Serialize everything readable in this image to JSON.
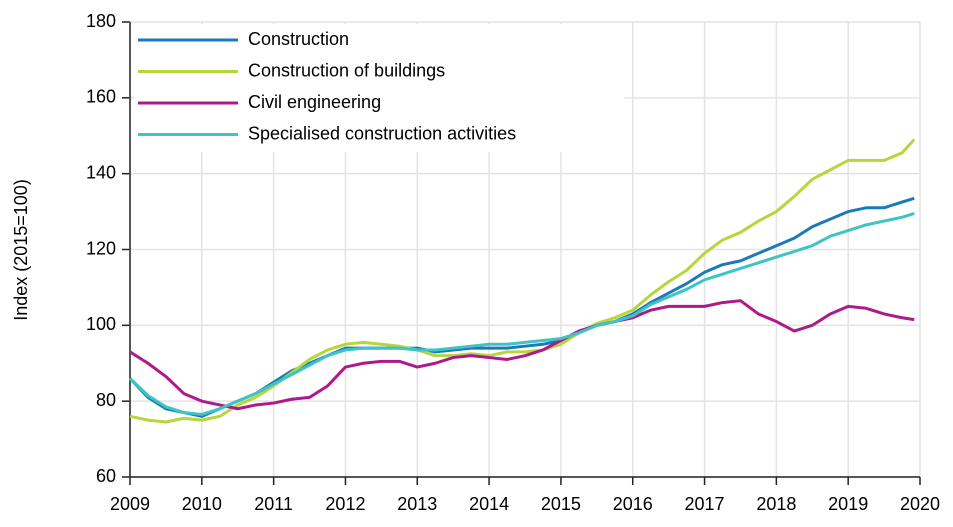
{
  "chart_data": {
    "type": "line",
    "y_label": "Index (2015=100)",
    "x": [
      2009,
      2009.25,
      2009.5,
      2009.75,
      2010,
      2010.25,
      2010.5,
      2010.75,
      2011,
      2011.25,
      2011.5,
      2011.75,
      2012,
      2012.25,
      2012.5,
      2012.75,
      2013,
      2013.25,
      2013.5,
      2013.75,
      2014,
      2014.25,
      2014.5,
      2014.75,
      2015,
      2015.25,
      2015.5,
      2015.75,
      2016,
      2016.25,
      2016.5,
      2016.75,
      2017,
      2017.25,
      2017.5,
      2017.75,
      2018,
      2018.25,
      2018.5,
      2018.75,
      2019,
      2019.25,
      2019.5,
      2019.75,
      2019.92
    ],
    "series": [
      {
        "name": "Construction",
        "color": "#1b7bb8",
        "values": [
          86,
          81,
          78,
          77,
          76,
          78,
          80,
          82,
          85,
          88,
          90,
          92,
          94,
          94,
          94,
          94,
          94,
          93,
          93.5,
          94,
          94,
          94,
          94.5,
          95,
          96,
          98,
          100,
          101,
          103,
          106,
          108.5,
          111,
          114,
          116,
          117,
          119,
          121,
          123,
          126,
          128,
          130,
          131,
          131,
          132.5,
          133.5
        ]
      },
      {
        "name": "Construction of buildings",
        "color": "#b6d63c",
        "values": [
          76,
          75,
          74.5,
          75.5,
          75,
          76,
          79,
          81,
          84,
          87.5,
          91,
          93.5,
          95,
          95.5,
          95,
          94.5,
          93.5,
          92,
          92,
          92.5,
          92,
          93,
          93,
          93.5,
          95,
          98,
          100.5,
          102,
          104,
          108,
          111.5,
          114.5,
          119,
          122.5,
          124.5,
          127.5,
          130,
          134,
          138.5,
          141,
          143.5,
          143.5,
          143.5,
          145.5,
          149
        ]
      },
      {
        "name": "Civil engineering",
        "color": "#ad1a8c",
        "values": [
          93,
          90,
          86.5,
          82,
          80,
          79,
          78,
          79,
          79.5,
          80.5,
          81,
          84,
          89,
          90,
          90.5,
          90.5,
          89,
          90,
          91.5,
          92,
          91.5,
          91,
          92,
          93.5,
          96,
          98.5,
          100,
          101,
          102,
          104,
          105,
          105,
          105,
          106,
          106.5,
          103,
          101,
          98.5,
          100,
          103,
          105,
          104.5,
          103,
          102,
          101.5
        ]
      },
      {
        "name": "Specialised construction activities",
        "color": "#3ec4c4",
        "values": [
          86,
          81.5,
          78.5,
          77,
          76.5,
          78,
          80,
          82,
          84.5,
          87,
          89.5,
          92,
          93.5,
          94,
          94,
          94,
          93.5,
          93.5,
          94,
          94.5,
          95,
          95,
          95.5,
          96,
          96.5,
          98,
          100,
          101,
          102.5,
          105.5,
          107.5,
          109.5,
          112,
          113.5,
          115,
          116.5,
          118,
          119.5,
          121,
          123.5,
          125,
          126.5,
          127.5,
          128.5,
          129.5
        ]
      }
    ],
    "xlim": [
      2009,
      2020
    ],
    "xticks": [
      2009,
      2010,
      2011,
      2012,
      2013,
      2014,
      2015,
      2016,
      2017,
      2018,
      2019,
      2020
    ],
    "ylim": [
      60,
      180
    ],
    "yticks": [
      60,
      80,
      100,
      120,
      140,
      160,
      180
    ],
    "grid": true,
    "legend": "top-left"
  }
}
